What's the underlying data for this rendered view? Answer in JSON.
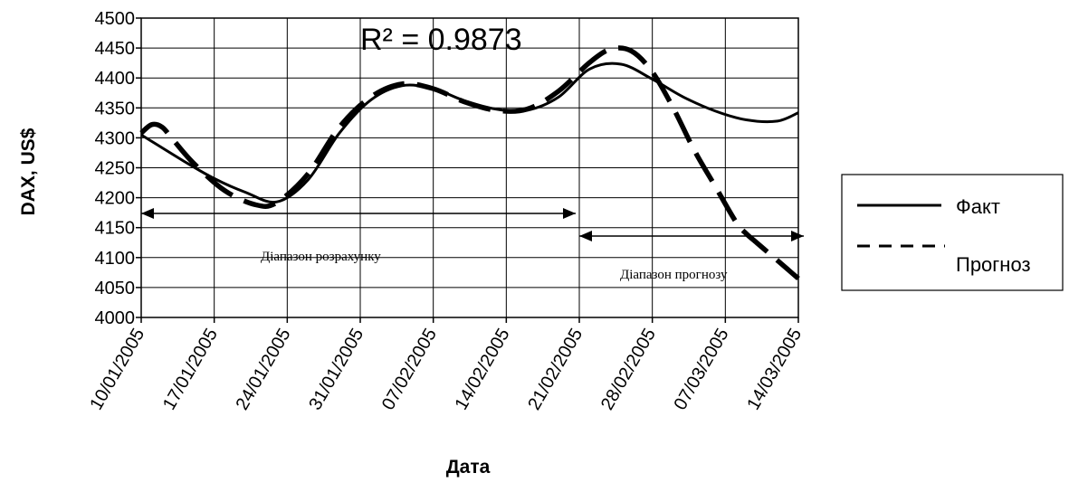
{
  "chart_data": {
    "type": "line",
    "xlabel": "Дата",
    "ylabel": "DAX, US$",
    "ylim": [
      4000,
      4500
    ],
    "y_ticks": [
      4000,
      4050,
      4100,
      4150,
      4200,
      4250,
      4300,
      4350,
      4400,
      4450,
      4500
    ],
    "x_ticks": [
      "10/01/2005",
      "17/01/2005",
      "24/01/2005",
      "31/01/2005",
      "07/02/2005",
      "14/02/2005",
      "21/02/2005",
      "28/02/2005",
      "07/03/2005",
      "14/03/2005"
    ],
    "grid": true,
    "annotation_r2": "R² = 0.9873",
    "range_labels": {
      "calc": "Діапазон розрахунку",
      "forecast": "Діапазон прогнозу"
    },
    "legend_position": "right",
    "series": [
      {
        "name": "Факт",
        "style": "solid",
        "x": [
          0,
          4,
          7,
          10,
          13,
          16,
          19,
          22,
          25,
          28,
          31,
          34,
          37,
          40,
          43,
          46,
          49,
          52,
          55,
          58,
          61,
          63
        ],
        "y": [
          4305,
          4262,
          4232,
          4209,
          4193,
          4230,
          4308,
          4363,
          4387,
          4382,
          4362,
          4348,
          4346,
          4368,
          4415,
          4423,
          4398,
          4368,
          4345,
          4330,
          4328,
          4342
        ]
      },
      {
        "name": "Прогноз",
        "style": "dashed",
        "x": [
          0,
          1,
          2,
          3,
          5,
          8,
          11,
          13,
          16,
          19,
          22,
          25,
          28,
          31,
          34,
          37,
          40,
          43,
          45,
          47,
          49,
          51,
          53,
          55,
          57,
          58,
          59,
          60,
          61,
          62,
          63
        ],
        "y": [
          4308,
          4322,
          4318,
          4298,
          4258,
          4212,
          4188,
          4192,
          4240,
          4318,
          4368,
          4390,
          4382,
          4360,
          4346,
          4348,
          4378,
          4426,
          4448,
          4445,
          4410,
          4350,
          4280,
          4220,
          4160,
          4140,
          4125,
          4110,
          4095,
          4080,
          4065
        ]
      }
    ]
  }
}
